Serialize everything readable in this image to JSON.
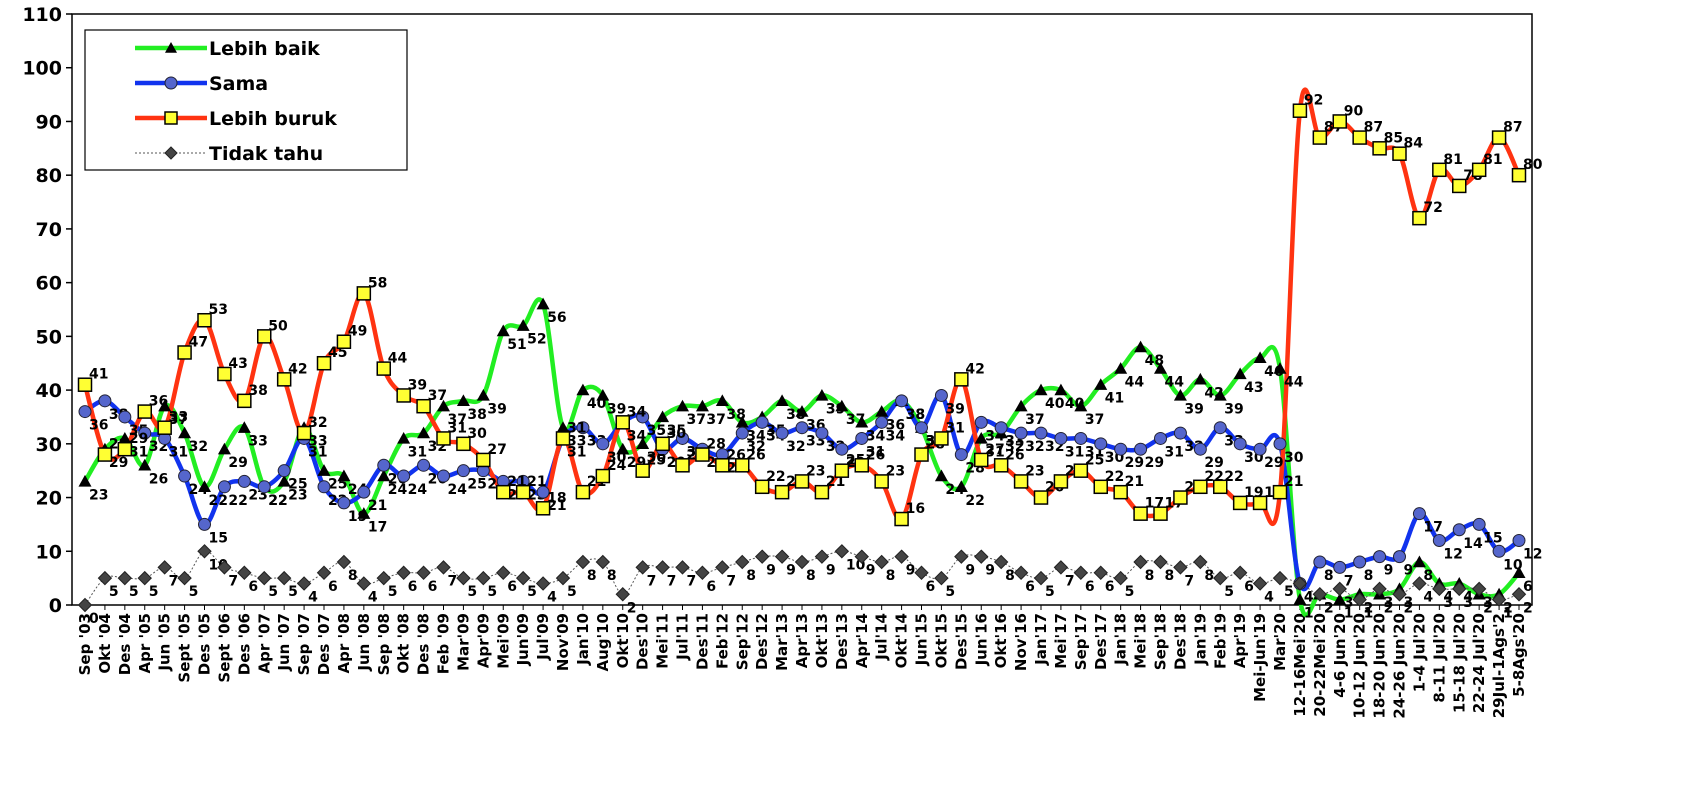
{
  "chart_data": {
    "type": "line",
    "categories": [
      "Sep '03",
      "Okt '04",
      "Des '04",
      "Apr '05",
      "Jun '05",
      "Sept '05",
      "Des '05",
      "Sept '06",
      "Des '06",
      "Apr '07",
      "Jun '07",
      "Sep '07",
      "Des '07",
      "Apr '08",
      "Jun '08",
      "Sep '08",
      "Okt '08",
      "Des '08",
      "Feb '09",
      "Mar'09",
      "Apr'09",
      "Mei'09",
      "Jun'09",
      "Jul'09",
      "Nov'09",
      "Jan'10",
      "Aug'10",
      "Okt'10",
      "Des'10",
      "Mei'11",
      "Jul'11",
      "Des'11",
      "Feb'12",
      "Sep'12",
      "Des'12",
      "Mar'13",
      "Apr'13",
      "Okt'13",
      "Des'13",
      "Apr'14",
      "Jul'14",
      "Okt'14",
      "Jun'15",
      "Okt'15",
      "Des'15",
      "Jun'16",
      "Okt'16",
      "Nov'16",
      "Jan'17",
      "Mei'17",
      "Sep'17",
      "Des'17",
      "Jan'18",
      "Mei'18",
      "Sep'18",
      "Des'18",
      "Jan'19",
      "Feb'19",
      "Apr'19",
      "Mei-Jun'19",
      "Mar'20",
      "12-16Mei'20",
      "20-22Mei'20",
      "4-6 Jun'20",
      "10-12 Jun'20",
      "18-20 Jun'20",
      "24-26 Jun'20",
      "1-4 Jul'20",
      "8-11 Jul'20",
      "15-18 Jul'20",
      "22-24 Jul'20",
      "29Jul-1Ags'2",
      "5-8Ags'20"
    ],
    "series": [
      {
        "name": "Lebih baik",
        "color": "#22ee22",
        "marker": "triangle",
        "values": [
          23,
          29,
          31,
          26,
          37,
          32,
          22,
          29,
          33,
          22,
          23,
          33,
          25,
          24,
          17,
          24,
          31,
          32,
          37,
          38,
          39,
          51,
          52,
          56,
          33,
          40,
          39,
          29,
          30,
          35,
          37,
          37,
          38,
          34,
          35,
          38,
          36,
          39,
          37,
          34,
          36,
          38,
          33,
          24,
          22,
          31,
          32,
          37,
          40,
          40,
          37,
          41,
          44,
          48,
          44,
          39,
          42,
          39,
          43,
          46,
          44,
          1,
          2,
          1,
          2,
          2,
          3,
          8,
          4,
          4,
          2,
          2,
          6
        ]
      },
      {
        "name": "Sama",
        "color": "#1133ee",
        "marker": "circle",
        "values": [
          36,
          38,
          35,
          32,
          31,
          24,
          15,
          22,
          23,
          22,
          25,
          31,
          22,
          19,
          21,
          26,
          24,
          26,
          24,
          25,
          25,
          23,
          23,
          21,
          31,
          33,
          30,
          34,
          35,
          29,
          31,
          29,
          28,
          32,
          34,
          32,
          33,
          32,
          29,
          31,
          34,
          38,
          33,
          39,
          28,
          34,
          33,
          32,
          32,
          31,
          31,
          30,
          29,
          29,
          31,
          32,
          29,
          33,
          30,
          29,
          30,
          4,
          8,
          7,
          8,
          9,
          9,
          17,
          12,
          14,
          15,
          10,
          12
        ]
      },
      {
        "name": "Lebih buruk",
        "color": "#ff3311",
        "marker": "square",
        "values": [
          41,
          28,
          29,
          36,
          33,
          47,
          53,
          43,
          38,
          50,
          42,
          32,
          45,
          49,
          58,
          44,
          39,
          37,
          31,
          30,
          27,
          21,
          21,
          18,
          31,
          21,
          24,
          34,
          25,
          30,
          26,
          28,
          26,
          26,
          22,
          21,
          23,
          21,
          25,
          26,
          23,
          16,
          28,
          31,
          42,
          27,
          26,
          23,
          20,
          23,
          25,
          22,
          21,
          17,
          17,
          20,
          22,
          22,
          19,
          19,
          21,
          92,
          87,
          90,
          87,
          85,
          84,
          72,
          81,
          78,
          81,
          87,
          80
        ]
      },
      {
        "name": "Tidak tahu",
        "color": "#555555",
        "marker": "diamond",
        "dotted": true,
        "values": [
          0,
          5,
          5,
          5,
          7,
          5,
          10,
          7,
          6,
          5,
          5,
          4,
          6,
          8,
          4,
          5,
          6,
          6,
          7,
          5,
          5,
          6,
          5,
          4,
          5,
          8,
          8,
          2,
          7,
          7,
          7,
          6,
          7,
          8,
          9,
          9,
          8,
          9,
          10,
          9,
          8,
          9,
          6,
          5,
          9,
          9,
          8,
          6,
          5,
          7,
          6,
          6,
          5,
          8,
          8,
          7,
          8,
          5,
          6,
          4,
          5,
          4,
          2,
          3,
          1,
          3,
          2,
          4,
          3,
          3,
          3,
          1,
          2
        ]
      }
    ],
    "ylim": [
      0,
      110
    ],
    "yticks": [
      0,
      10,
      20,
      30,
      40,
      50,
      60,
      70,
      80,
      90,
      100,
      110
    ],
    "legend": "upper left"
  }
}
